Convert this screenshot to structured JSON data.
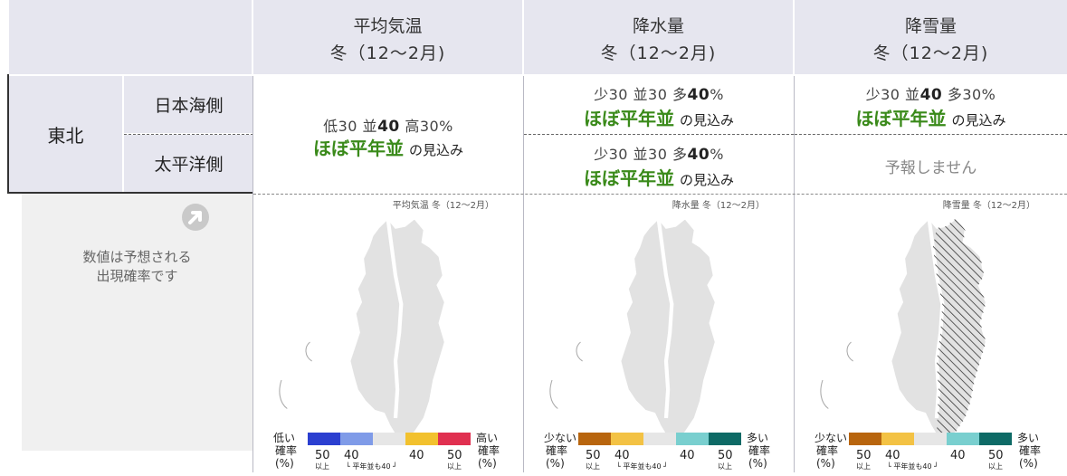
{
  "columns": [
    {
      "title": "平均気温",
      "period": "冬（12〜2月)"
    },
    {
      "title": "降水量",
      "period": "冬（12〜2月)"
    },
    {
      "title": "降雪量",
      "period": "冬（12〜2月)"
    }
  ],
  "region": "東北",
  "sides": [
    "日本海側",
    "太平洋側"
  ],
  "temp": {
    "p1": "低30 並",
    "p2": "40",
    "p3": " 高30%",
    "verdict": "ほぼ平年並",
    "tail": "の見込み"
  },
  "precip_japan_sea": {
    "p1": "少30 並30 多",
    "p2": "40",
    "p3": "%",
    "verdict": "ほぼ平年並",
    "tail": "の見込み"
  },
  "precip_pacific": {
    "p1": "少30 並30 多",
    "p2": "40",
    "p3": "%",
    "verdict": "ほぼ平年並",
    "tail": "の見込み"
  },
  "snow_japan_sea": {
    "p1": "少30 並",
    "p2": "40",
    "p3": " 多30%",
    "verdict": "ほぼ平年並",
    "tail": "の見込み"
  },
  "snow_pacific": {
    "none": "予報しません"
  },
  "note": {
    "line1": "数値は予想される",
    "line2": "出現確率です"
  },
  "maps": [
    {
      "title": "平均気温 冬（12〜2月）",
      "lo": "低い",
      "hi": "高い",
      "lo_colors": [
        "#2b3fd0",
        "#7f9be8"
      ],
      "hi_colors": [
        "#f2c12e",
        "#e03050"
      ]
    },
    {
      "title": "降水量 冬（12〜2月）",
      "lo": "少ない",
      "hi": "多い",
      "lo_colors": [
        "#b8650e",
        "#f3c244"
      ],
      "hi_colors": [
        "#79cfcf",
        "#0e6a66"
      ]
    },
    {
      "title": "降雪量 冬（12〜2月）",
      "lo": "少ない",
      "hi": "多い",
      "lo_colors": [
        "#b8650e",
        "#f3c244"
      ],
      "hi_colors": [
        "#79cfcf",
        "#0e6a66"
      ]
    }
  ],
  "legend": {
    "prob": "確率",
    "pct": "(%)",
    "n50": "50",
    "n40": "40",
    "ijou": "以上",
    "heinen": "平年並も40"
  }
}
